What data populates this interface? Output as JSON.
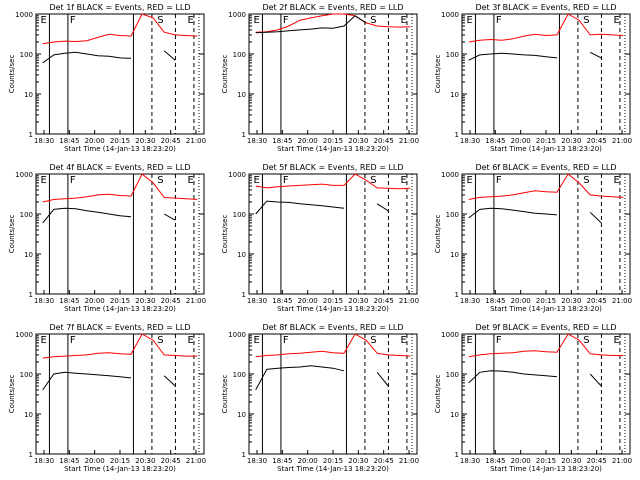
{
  "chart_data": [
    {
      "type": "line",
      "title": "Det 1f BLACK = Events, RED = LLD",
      "xlabel": "Start Time (14-Jan-13 18:23:20)",
      "ylabel": "Counts/sec",
      "x_ticks": [
        "18:30",
        "18:45",
        "20:00",
        "20:15",
        "20:30",
        "20:45",
        "21:00"
      ],
      "y_ticks": [
        "1",
        "10",
        "100",
        "1000"
      ],
      "ylim": [
        1,
        1000
      ],
      "yscale": "log",
      "markers": [
        "E",
        "F",
        "S",
        "E"
      ],
      "series": [
        {
          "color": "#ff0000",
          "y": [
            180,
            200,
            210,
            205,
            215,
            260,
            310,
            290,
            280,
            1000,
            800,
            350,
            300,
            290,
            280
          ]
        },
        {
          "color": "#000000",
          "y": [
            60,
            95,
            105,
            110,
            100,
            90,
            88,
            80,
            78,
            null,
            null,
            120,
            70,
            null,
            null
          ]
        }
      ]
    },
    {
      "type": "line",
      "title": "Det 2f BLACK = Events, RED = LLD",
      "xlabel": "Start Time (14-Jan-13 18:23:20)",
      "ylabel": "Counts/sec",
      "x_ticks": [
        "18:30",
        "18:45",
        "20:00",
        "20:15",
        "20:30",
        "20:45",
        "21:00"
      ],
      "y_ticks": [
        "1",
        "10",
        "100",
        "1000"
      ],
      "ylim": [
        1,
        1000
      ],
      "yscale": "log",
      "markers": [
        "E",
        "F",
        "S",
        "E"
      ],
      "series": [
        {
          "color": "#ff0000",
          "y": [
            350,
            360,
            400,
            500,
            700,
            800,
            900,
            1000,
            1000,
            900,
            600,
            500,
            480,
            470,
            480
          ]
        },
        {
          "color": "#000000",
          "y": [
            340,
            350,
            360,
            380,
            400,
            420,
            450,
            440,
            500,
            900,
            600,
            null,
            null,
            null,
            null
          ]
        }
      ]
    },
    {
      "type": "line",
      "title": "Det 3f BLACK = Events, RED = LLD",
      "xlabel": "Start Time (14-Jan-13 18:23:20)",
      "ylabel": "Counts/sec",
      "x_ticks": [
        "18:30",
        "18:45",
        "20:00",
        "20:15",
        "20:30",
        "20:45",
        "21:00"
      ],
      "y_ticks": [
        "1",
        "10",
        "100",
        "1000"
      ],
      "ylim": [
        1,
        1000
      ],
      "yscale": "log",
      "markers": [
        "E",
        "F",
        "S",
        "E"
      ],
      "series": [
        {
          "color": "#ff0000",
          "y": [
            200,
            220,
            230,
            220,
            240,
            280,
            310,
            290,
            300,
            1000,
            700,
            300,
            310,
            300,
            290
          ]
        },
        {
          "color": "#000000",
          "y": [
            70,
            95,
            100,
            105,
            100,
            95,
            92,
            85,
            80,
            null,
            null,
            110,
            80,
            null,
            null
          ]
        }
      ]
    },
    {
      "type": "line",
      "title": "Det 4f BLACK = Events, RED = LLD",
      "xlabel": "Start Time (14-Jan-13 18:23:20)",
      "ylabel": "Counts/sec",
      "x_ticks": [
        "18:30",
        "18:45",
        "20:00",
        "20:15",
        "20:30",
        "20:45",
        "21:00"
      ],
      "y_ticks": [
        "1",
        "10",
        "100",
        "1000"
      ],
      "ylim": [
        1,
        1000
      ],
      "yscale": "log",
      "markers": [
        "E",
        "F",
        "S",
        "E"
      ],
      "series": [
        {
          "color": "#ff0000",
          "y": [
            200,
            230,
            240,
            250,
            270,
            300,
            310,
            290,
            280,
            1000,
            600,
            260,
            250,
            240,
            230
          ]
        },
        {
          "color": "#000000",
          "y": [
            60,
            130,
            140,
            135,
            120,
            110,
            100,
            90,
            85,
            null,
            null,
            100,
            70,
            null,
            null
          ]
        }
      ]
    },
    {
      "type": "line",
      "title": "Det 5f BLACK = Events, RED = LLD",
      "xlabel": "Start Time (14-Jan-13 18:23:20)",
      "ylabel": "Counts/sec",
      "x_ticks": [
        "18:30",
        "18:45",
        "20:00",
        "20:15",
        "20:30",
        "20:45",
        "21:00"
      ],
      "y_ticks": [
        "1",
        "10",
        "100",
        "1000"
      ],
      "ylim": [
        1,
        1000
      ],
      "yscale": "log",
      "markers": [
        "E",
        "F",
        "S",
        "E"
      ],
      "series": [
        {
          "color": "#ff0000",
          "y": [
            500,
            450,
            480,
            500,
            520,
            540,
            560,
            520,
            520,
            1000,
            700,
            450,
            440,
            430,
            440
          ]
        },
        {
          "color": "#000000",
          "y": [
            100,
            210,
            200,
            195,
            180,
            170,
            160,
            150,
            140,
            null,
            null,
            180,
            120,
            null,
            null
          ]
        }
      ]
    },
    {
      "type": "line",
      "title": "Det 6f BLACK = Events, RED = LLD",
      "xlabel": "Start Time (14-Jan-13 18:23:20)",
      "ylabel": "Counts/sec",
      "x_ticks": [
        "18:30",
        "18:45",
        "20:00",
        "20:15",
        "20:30",
        "20:45",
        "21:00"
      ],
      "y_ticks": [
        "1",
        "10",
        "100",
        "1000"
      ],
      "ylim": [
        1,
        1000
      ],
      "yscale": "log",
      "markers": [
        "E",
        "F",
        "S",
        "E"
      ],
      "series": [
        {
          "color": "#ff0000",
          "y": [
            230,
            260,
            270,
            280,
            300,
            340,
            380,
            360,
            350,
            1000,
            600,
            300,
            280,
            270,
            260
          ]
        },
        {
          "color": "#000000",
          "y": [
            80,
            130,
            140,
            135,
            125,
            115,
            105,
            100,
            95,
            null,
            null,
            110,
            60,
            null,
            null
          ]
        }
      ]
    },
    {
      "type": "line",
      "title": "Det 7f BLACK = Events, RED = LLD",
      "xlabel": "Start Time (14-Jan-13 18:23:20)",
      "ylabel": "Counts/sec",
      "x_ticks": [
        "18:30",
        "18:45",
        "20:00",
        "20:15",
        "20:30",
        "20:45",
        "21:00"
      ],
      "y_ticks": [
        "1",
        "10",
        "100",
        "1000"
      ],
      "ylim": [
        1,
        1000
      ],
      "yscale": "log",
      "markers": [
        "E",
        "F",
        "S",
        "E"
      ],
      "series": [
        {
          "color": "#ff0000",
          "y": [
            250,
            270,
            280,
            290,
            300,
            330,
            340,
            320,
            310,
            1000,
            700,
            300,
            290,
            280,
            280
          ]
        },
        {
          "color": "#000000",
          "y": [
            40,
            100,
            110,
            105,
            100,
            95,
            90,
            85,
            80,
            null,
            null,
            90,
            50,
            null,
            null
          ]
        }
      ]
    },
    {
      "type": "line",
      "title": "Det 8f BLACK = Events, RED = LLD",
      "xlabel": "Start Time (14-Jan-13 18:23:20)",
      "ylabel": "Counts/sec",
      "x_ticks": [
        "18:30",
        "18:45",
        "20:00",
        "20:15",
        "20:30",
        "20:45",
        "21:00"
      ],
      "y_ticks": [
        "1",
        "10",
        "100",
        "1000"
      ],
      "ylim": [
        1,
        1000
      ],
      "yscale": "log",
      "markers": [
        "E",
        "F",
        "S",
        "E"
      ],
      "series": [
        {
          "color": "#ff0000",
          "y": [
            270,
            290,
            300,
            320,
            330,
            350,
            370,
            340,
            330,
            1000,
            700,
            330,
            300,
            290,
            280
          ]
        },
        {
          "color": "#000000",
          "y": [
            40,
            130,
            140,
            145,
            150,
            160,
            150,
            140,
            120,
            null,
            null,
            110,
            50,
            null,
            null
          ]
        }
      ]
    },
    {
      "type": "line",
      "title": "Det 9f BLACK = Events, RED = LLD",
      "xlabel": "Start Time (14-Jan-13 18:23:20)",
      "ylabel": "Counts/sec",
      "x_ticks": [
        "18:30",
        "18:45",
        "20:00",
        "20:15",
        "20:30",
        "20:45",
        "21:00"
      ],
      "y_ticks": [
        "1",
        "10",
        "100",
        "1000"
      ],
      "ylim": [
        1,
        1000
      ],
      "yscale": "log",
      "markers": [
        "E",
        "F",
        "S",
        "E"
      ],
      "series": [
        {
          "color": "#ff0000",
          "y": [
            270,
            300,
            320,
            330,
            340,
            370,
            380,
            360,
            350,
            1000,
            700,
            320,
            300,
            290,
            290
          ]
        },
        {
          "color": "#000000",
          "y": [
            60,
            110,
            120,
            118,
            110,
            100,
            95,
            90,
            85,
            null,
            null,
            100,
            50,
            null,
            null
          ]
        }
      ]
    }
  ]
}
